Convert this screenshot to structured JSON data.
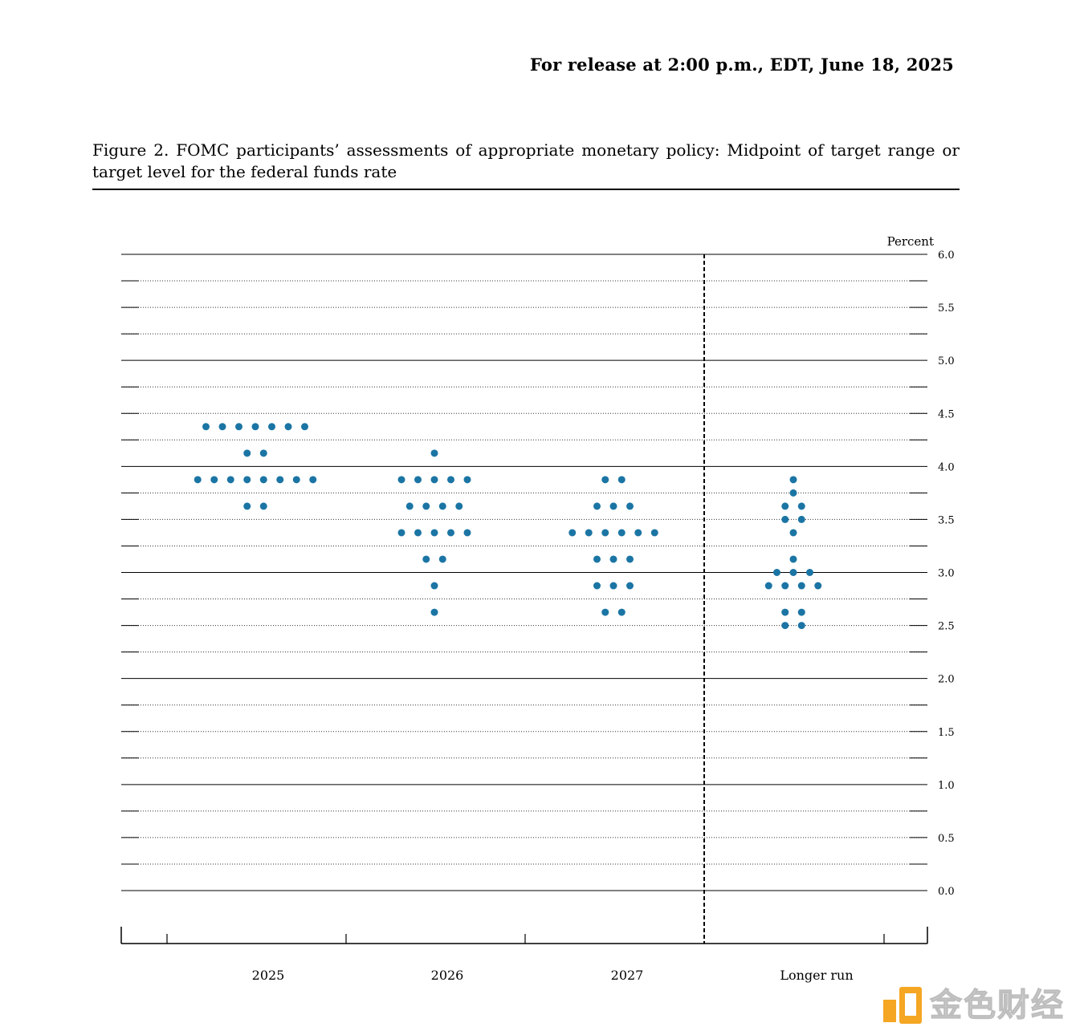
{
  "header": {
    "release_text": "For release at 2:00 p.m., EDT, June 18, 2025"
  },
  "figure": {
    "caption": "Figure 2.  FOMC participants’ assessments of appropriate monetary policy: Midpoint of target range or target level for the federal funds rate"
  },
  "chart_data": {
    "type": "scatter",
    "title": "",
    "ylabel": "Percent",
    "ylim": [
      0.0,
      6.0
    ],
    "y_ticks": [
      "6.0",
      "5.5",
      "5.0",
      "4.5",
      "4.0",
      "3.5",
      "3.0",
      "2.5",
      "2.0",
      "1.5",
      "1.0",
      "0.5",
      "0.0"
    ],
    "categories": [
      "2025",
      "2026",
      "2027",
      "Longer run"
    ],
    "grid": "dotted horizontal lines every 0.25; solid every 1.0",
    "dot_color": "#1b75a4",
    "columns": [
      {
        "category": "2025",
        "dots": [
          {
            "rate": 4.375,
            "count": 7
          },
          {
            "rate": 4.125,
            "count": 2
          },
          {
            "rate": 3.875,
            "count": 8
          },
          {
            "rate": 3.625,
            "count": 2
          }
        ]
      },
      {
        "category": "2026",
        "dots": [
          {
            "rate": 4.125,
            "count": 1
          },
          {
            "rate": 3.875,
            "count": 5
          },
          {
            "rate": 3.625,
            "count": 4
          },
          {
            "rate": 3.375,
            "count": 5
          },
          {
            "rate": 3.125,
            "count": 2
          },
          {
            "rate": 2.875,
            "count": 1
          },
          {
            "rate": 2.625,
            "count": 1
          }
        ]
      },
      {
        "category": "2027",
        "dots": [
          {
            "rate": 3.875,
            "count": 2
          },
          {
            "rate": 3.625,
            "count": 3
          },
          {
            "rate": 3.375,
            "count": 6
          },
          {
            "rate": 3.125,
            "count": 3
          },
          {
            "rate": 2.875,
            "count": 3
          },
          {
            "rate": 2.625,
            "count": 2
          }
        ]
      },
      {
        "category": "Longer run",
        "dots": [
          {
            "rate": 3.875,
            "count": 1
          },
          {
            "rate": 3.75,
            "count": 1
          },
          {
            "rate": 3.625,
            "count": 2
          },
          {
            "rate": 3.5,
            "count": 2
          },
          {
            "rate": 3.375,
            "count": 1
          },
          {
            "rate": 3.125,
            "count": 1
          },
          {
            "rate": 3.0,
            "count": 3
          },
          {
            "rate": 2.875,
            "count": 4
          },
          {
            "rate": 2.625,
            "count": 2
          },
          {
            "rate": 2.5,
            "count": 2
          }
        ]
      }
    ]
  },
  "watermark": {
    "text": "金色财经",
    "logo_color": "#f5a623"
  }
}
